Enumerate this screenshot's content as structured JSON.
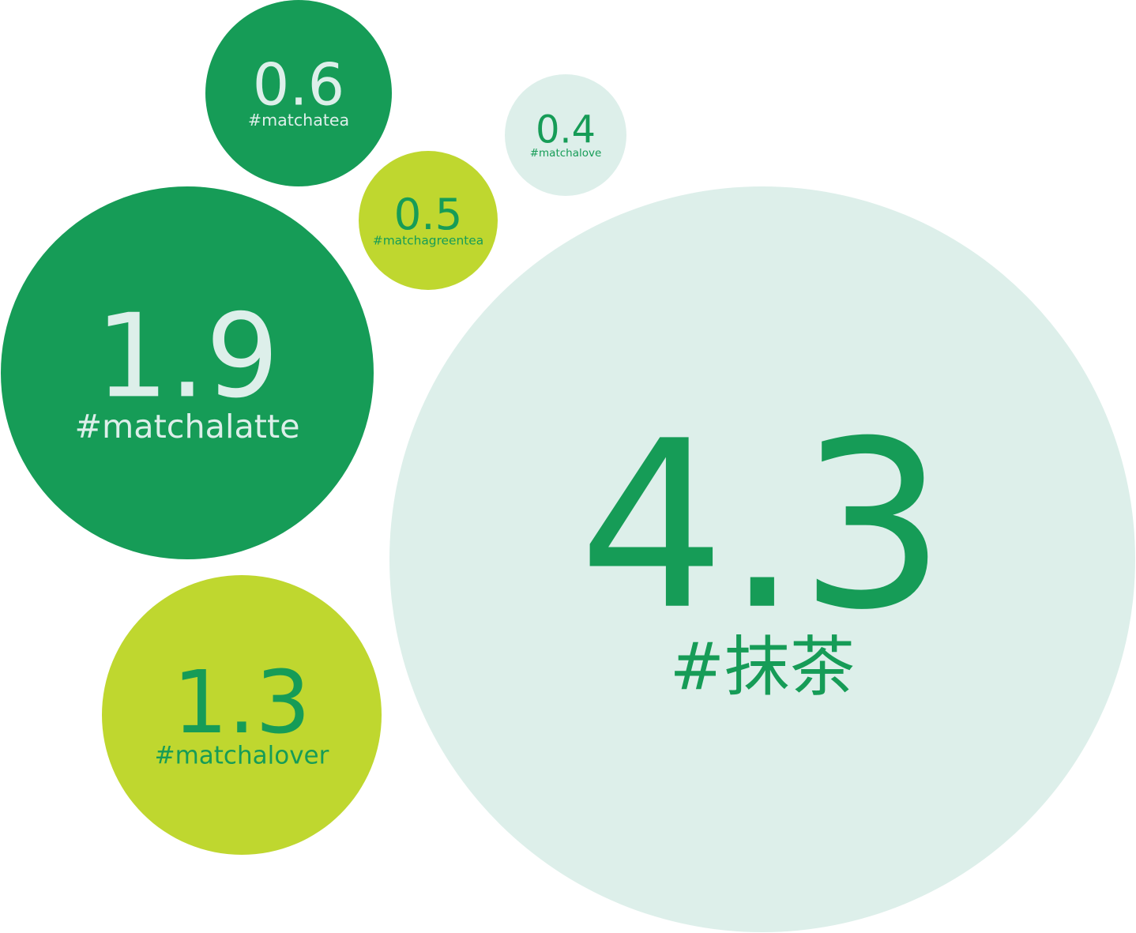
{
  "chart_data": {
    "type": "bubble",
    "title": "",
    "legend": "none",
    "bubbles": [
      {
        "label": "#抹茶",
        "value": 4.3,
        "fill": "#ddefea",
        "text_color": "#169c57"
      },
      {
        "label": "#matchalatte",
        "value": 1.9,
        "fill": "#169c57",
        "text_color": "#ddefea"
      },
      {
        "label": "#matchalover",
        "value": 1.3,
        "fill": "#bfd72f",
        "text_color": "#169c57"
      },
      {
        "label": "#matchatea",
        "value": 0.6,
        "fill": "#169c57",
        "text_color": "#ddefea"
      },
      {
        "label": "#matchagreentea",
        "value": 0.5,
        "fill": "#bfd72f",
        "text_color": "#169c57"
      },
      {
        "label": "#matchalove",
        "value": 0.4,
        "fill": "#ddefea",
        "text_color": "#169c57"
      }
    ]
  },
  "colors": {
    "dark_green": "#169c57",
    "lime": "#bfd72f",
    "mint": "#ddefea",
    "background": "#ffffff"
  }
}
